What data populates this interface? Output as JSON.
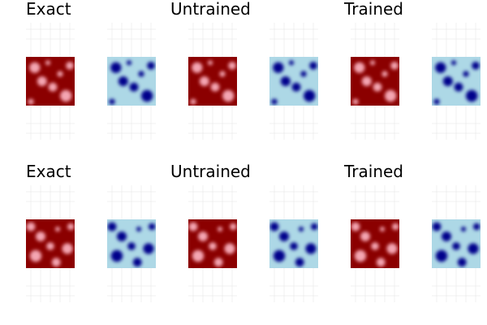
{
  "figure": {
    "rows": [
      {
        "titles": [
          "Exact",
          "Untrained",
          "Trained"
        ]
      },
      {
        "titles": [
          "Exact",
          "Untrained",
          "Trained"
        ]
      }
    ]
  },
  "chart_data": {
    "type": "heatmap",
    "layout": "2 rows × 3 groups, each group = red field (u) + blue field (v)",
    "grid": true,
    "colors": {
      "u_background": "#8b0000",
      "u_spots": "#f4a6b2",
      "v_background": "#add8e6",
      "v_spots": "#00008b",
      "gridline": "#e6e6e6"
    },
    "pattern_rows": [
      {
        "label": "row-1",
        "spots": [
          {
            "x": 0.18,
            "y": 0.22,
            "r": 0.11
          },
          {
            "x": 0.33,
            "y": 0.5,
            "r": 0.1
          },
          {
            "x": 0.55,
            "y": 0.62,
            "r": 0.09
          },
          {
            "x": 0.82,
            "y": 0.8,
            "r": 0.12
          },
          {
            "x": 0.9,
            "y": 0.18,
            "r": 0.08
          },
          {
            "x": 0.1,
            "y": 0.92,
            "r": 0.06
          },
          {
            "x": 0.45,
            "y": 0.12,
            "r": 0.05
          },
          {
            "x": 0.7,
            "y": 0.35,
            "r": 0.06
          }
        ]
      },
      {
        "label": "row-2",
        "spots": [
          {
            "x": 0.1,
            "y": 0.15,
            "r": 0.09
          },
          {
            "x": 0.3,
            "y": 0.35,
            "r": 0.1
          },
          {
            "x": 0.2,
            "y": 0.75,
            "r": 0.12
          },
          {
            "x": 0.5,
            "y": 0.55,
            "r": 0.08
          },
          {
            "x": 0.62,
            "y": 0.88,
            "r": 0.09
          },
          {
            "x": 0.85,
            "y": 0.6,
            "r": 0.11
          },
          {
            "x": 0.92,
            "y": 0.15,
            "r": 0.07
          },
          {
            "x": 0.65,
            "y": 0.2,
            "r": 0.05
          }
        ]
      }
    ]
  }
}
